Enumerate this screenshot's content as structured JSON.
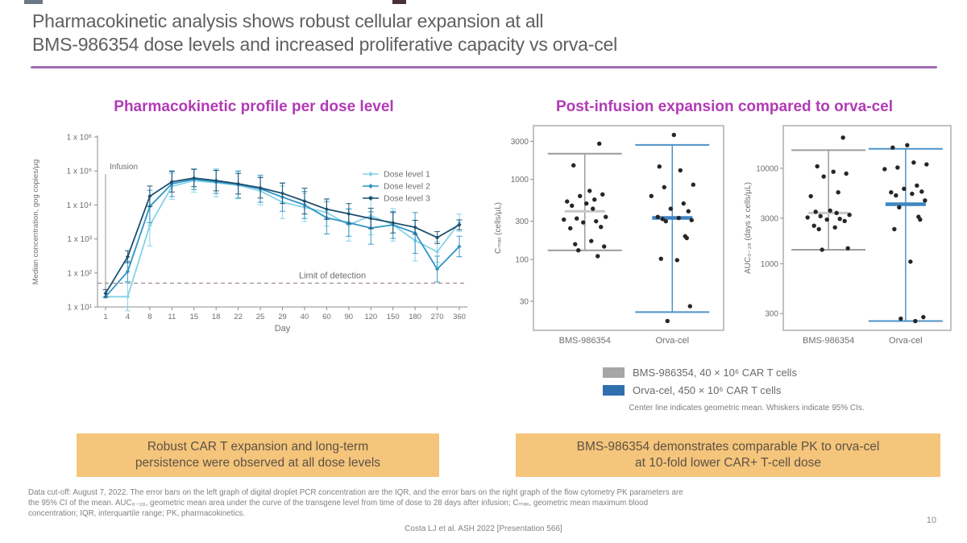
{
  "slide": {
    "title": "Pharmacokinetic analysis shows robust cellular expansion at all\nBMS-986354 dose levels and increased proliferative capacity vs orva-cel",
    "page_number": "10",
    "citation": "Costa LJ et al. ASH 2022 [Presentation 566]",
    "footnote": "Data cut-off: August 7, 2022. The error bars on the left graph of digital droplet PCR concentration are the IQR, and the error bars on the right graph of the flow cytometry PK parameters are\nthe 95% CI of the mean. AUC₀₋₂₈, geometric mean area under the curve of the transgene level from time of dose to 28 days after infusion; Cₘₐₓ, geometric mean maximum blood\nconcentration; IQR, interquartile range; PK, pharmacokinetics.",
    "expansion_title": "Post-infusion expansion compared to orva-cel",
    "callouts": {
      "left": "Robust CAR T expansion and long-term\npersistence were observed at all dose levels",
      "right": "BMS-986354 demonstrates comparable PK to orva-cel\nat 10-fold lower CAR+ T-cell dose"
    },
    "colors": {
      "accent_underline": "#a06cb2",
      "chart_title_magenta": "#b23ab6",
      "callout_bg": "#f5c57c",
      "title_text": "#5f5f5f",
      "dose_level_1": "#84d2e8",
      "dose_level_2": "#2f93c4",
      "dose_level_3": "#1d4e6e",
      "bms_whisker_gray": "#9c9c9c",
      "orva_whisker_blue": "#4d93c8",
      "scatter_dot": "#262626"
    }
  },
  "scatter_legend": [
    {
      "color": "#a6a6a6",
      "label": "BMS-986354, 40 × 10⁶ CAR T cells"
    },
    {
      "color": "#2f6fae",
      "label": "Orva-cel, 450 × 10⁶ CAR T cells"
    }
  ],
  "scatter_note": "Center line indicates geometric mean. Whiskers indicate 95% CIs.",
  "chart_data": [
    {
      "type": "line",
      "title": "Pharmacokinetic profile per dose level",
      "xlabel": "Day",
      "ylabel": "Median concentration, gog copies/µg",
      "x_ticks": [
        "1",
        "4",
        "8",
        "11",
        "15",
        "18",
        "22",
        "25",
        "29",
        "40",
        "60",
        "90",
        "120",
        "150",
        "180",
        "270",
        "360"
      ],
      "y_ticks": [
        {
          "label": "1 x 10⁶",
          "value": 1000000
        },
        {
          "label": "1 x 10⁵",
          "value": 100000
        },
        {
          "label": "1 x 10⁴",
          "value": 10000
        },
        {
          "label": "1 x 10³",
          "value": 1000
        },
        {
          "label": "1 x 10²",
          "value": 100
        },
        {
          "label": "1 x 10¹",
          "value": 10
        }
      ],
      "ylim": [
        10,
        1000000
      ],
      "grid": false,
      "legend_position": "top-right",
      "infusion_label": "Infusion",
      "lod": {
        "label": "Limit of detection",
        "value": 50
      },
      "series": [
        {
          "name": "Dose level 1",
          "color": "#84d2e8",
          "values": [
            20,
            20,
            2500,
            35000,
            52000,
            45000,
            38000,
            26000,
            12000,
            8500,
            6000,
            2600,
            4800,
            2600,
            900,
            420,
            3000
          ],
          "err_factor": [
            1,
            2.6,
            4,
            2.4,
            2.2,
            2.6,
            2.5,
            2.6,
            3,
            2.6,
            2.5,
            3,
            3.6,
            3,
            4,
            2,
            1.8
          ]
        },
        {
          "name": "Dose level 2",
          "color": "#2f93c4",
          "values": [
            20,
            110,
            9000,
            42000,
            57000,
            48000,
            40000,
            30000,
            17000,
            10000,
            4200,
            3000,
            2100,
            2600,
            1500,
            130,
            600
          ],
          "err_factor": [
            1,
            2,
            3,
            2.4,
            2,
            2.2,
            2.5,
            2.5,
            2.6,
            2.5,
            3,
            2.5,
            3,
            2.5,
            4,
            2.4,
            2
          ]
        },
        {
          "name": "Dose level 3",
          "color": "#1d4e6e",
          "values": [
            25,
            300,
            18000,
            48000,
            62000,
            52000,
            42000,
            32000,
            22000,
            13000,
            7500,
            5500,
            4000,
            3000,
            2200,
            1100,
            2600
          ],
          "err_factor": [
            1.3,
            1.5,
            2,
            2,
            1.8,
            2,
            2,
            2,
            2,
            2.4,
            2,
            2,
            2,
            2,
            1.6,
            1.5,
            1.4
          ]
        }
      ]
    },
    {
      "type": "scatter",
      "name": "cmax_panel",
      "ylabel": "Cₘₐₓ (cells/µL)",
      "y_ticks": [
        3000,
        1000,
        300,
        100,
        30
      ],
      "ylim": [
        13,
        4700
      ],
      "dot_color": "#262626",
      "groups": [
        {
          "name": "BMS-986354",
          "color": "#9c9c9c",
          "center_color": "#c8c8c8",
          "whisker_lo": 130,
          "whisker_hi": 2100,
          "center": 400,
          "points": [
            2800,
            1500,
            720,
            650,
            620,
            560,
            530,
            500,
            470,
            430,
            340,
            325,
            315,
            300,
            290,
            255,
            245,
            170,
            155,
            145,
            130,
            110
          ]
        },
        {
          "name": "Orva-cel",
          "color": "#4d93c8",
          "center_color": "#3e86c2",
          "whisker_lo": 22,
          "whisker_hi": 2700,
          "center": 330,
          "points": [
            3600,
            1450,
            1300,
            860,
            800,
            620,
            500,
            430,
            400,
            340,
            330,
            320,
            310,
            300,
            195,
            185,
            102,
            98,
            26,
            17
          ]
        }
      ]
    },
    {
      "type": "scatter",
      "name": "auc_panel",
      "ylabel": "AUC₀₋₂₈ (days x cells/µL)",
      "y_ticks": [
        10000,
        3000,
        1000,
        300
      ],
      "ylim": [
        200,
        28000
      ],
      "dot_color": "#262626",
      "groups": [
        {
          "name": "BMS-986354",
          "color": "#9c9c9c",
          "center_color": "#c8c8c8",
          "whisker_lo": 1400,
          "whisker_hi": 15500,
          "center": 3400,
          "points": [
            21000,
            10500,
            9200,
            8800,
            8200,
            5600,
            5100,
            3600,
            3500,
            3400,
            3250,
            3150,
            3050,
            2950,
            2900,
            2800,
            2500,
            2400,
            2300,
            1450,
            1400
          ]
        },
        {
          "name": "Orva-cel",
          "color": "#4d93c8",
          "center_color": "#3e86c2",
          "whisker_lo": 250,
          "whisker_hi": 16000,
          "center": 4200,
          "points": [
            17500,
            16500,
            11500,
            11000,
            10200,
            9800,
            6600,
            6100,
            5700,
            5600,
            5400,
            5200,
            4600,
            3900,
            3100,
            2900,
            2300,
            1050,
            275,
            265,
            250
          ]
        }
      ]
    }
  ]
}
